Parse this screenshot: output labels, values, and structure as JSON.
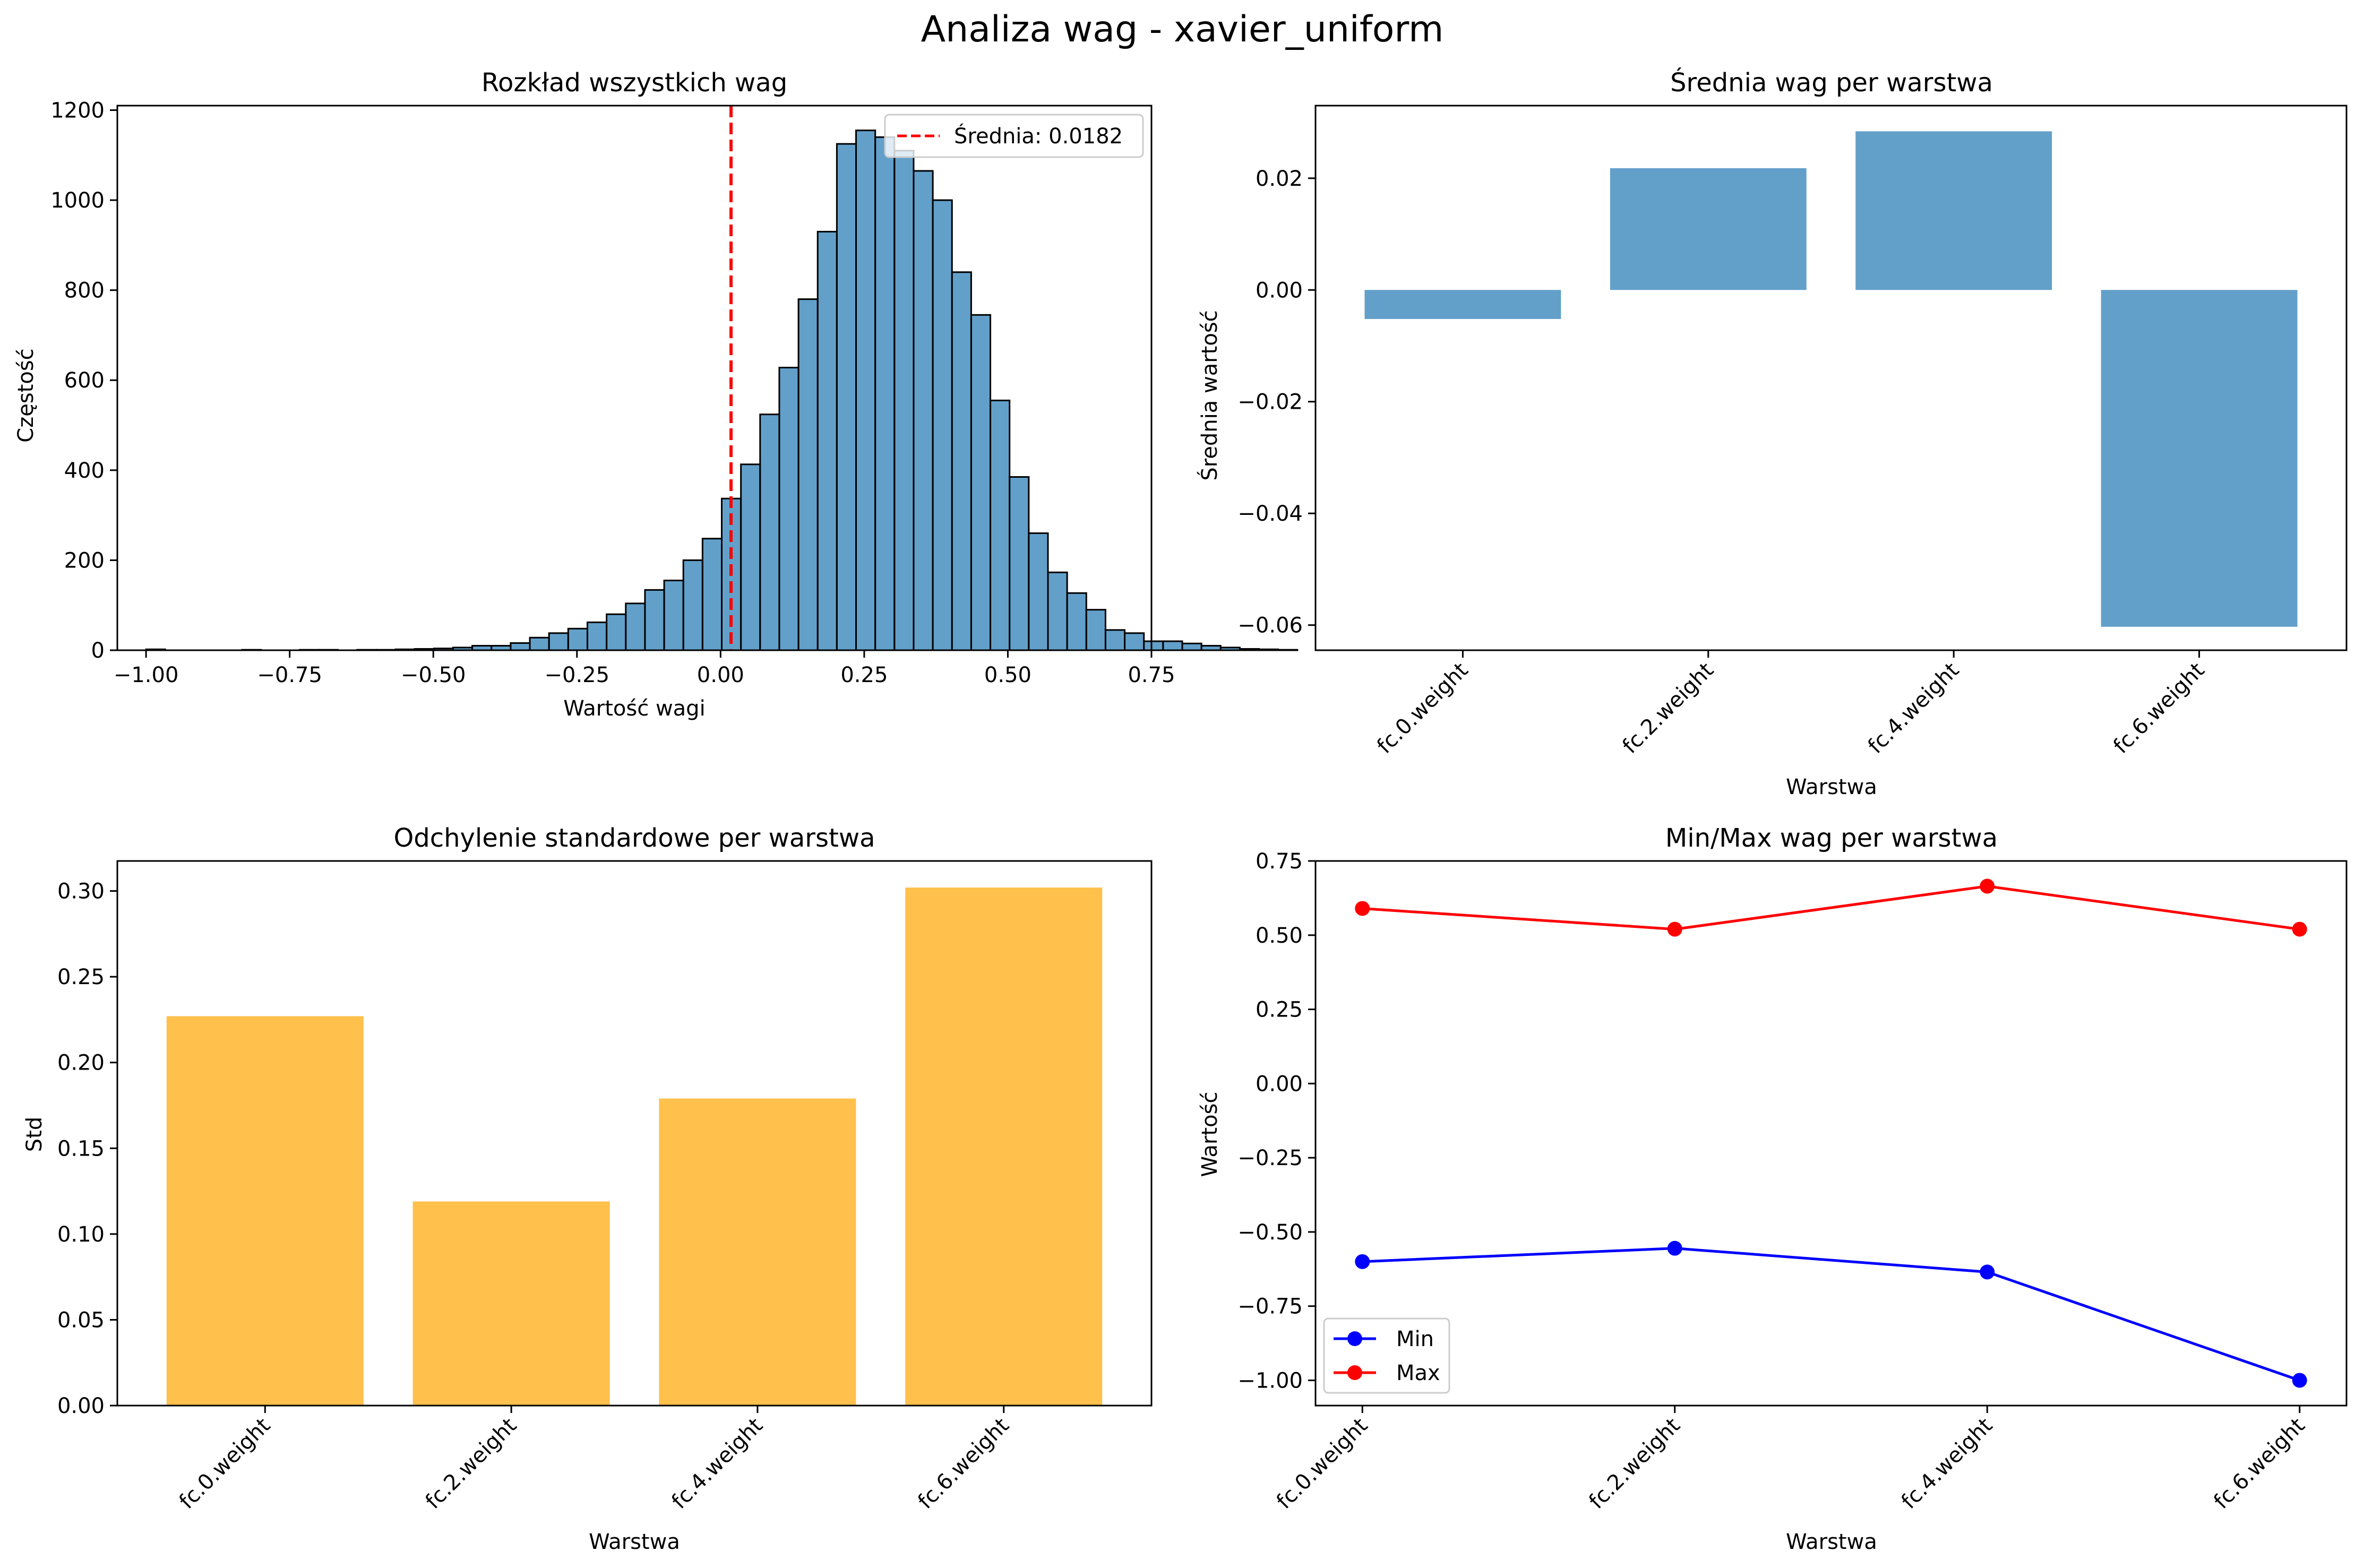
{
  "suptitle": "Analiza wag - xavier_uniform",
  "charts": {
    "hist": {
      "title": "Rozkład wszystkich wag",
      "xlabel": "Wartość wagi",
      "ylabel": "Częstość",
      "legend_label": "Średnia: 0.0182",
      "xticks": [
        "−1.00",
        "−0.75",
        "−0.50",
        "−0.25",
        "0.00",
        "0.25",
        "0.50",
        "0.75"
      ],
      "yticks": [
        "0",
        "200",
        "400",
        "600",
        "800",
        "1000",
        "1200"
      ]
    },
    "mean": {
      "title": "Średnia wag per warstwa",
      "xlabel": "Warstwa",
      "ylabel": "Średnia wartość",
      "yticks": [
        "−0.06",
        "−0.04",
        "−0.02",
        "0.00",
        "0.02"
      ]
    },
    "std": {
      "title": "Odchylenie standardowe per warstwa",
      "xlabel": "Warstwa",
      "ylabel": "Std",
      "yticks": [
        "0.00",
        "0.05",
        "0.10",
        "0.15",
        "0.20",
        "0.25",
        "0.30"
      ]
    },
    "minmax": {
      "title": "Min/Max wag per warstwa",
      "xlabel": "Warstwa",
      "ylabel": "Wartość",
      "yticks": [
        "−1.00",
        "−0.75",
        "−0.50",
        "−0.25",
        "0.00",
        "0.25",
        "0.50",
        "0.75"
      ]
    }
  },
  "chart_data": [
    {
      "type": "bar",
      "subtype": "histogram",
      "title": "Rozkład wszystkich wag",
      "xlabel": "Wartość wagi",
      "ylabel": "Częstość",
      "xlim": [
        -1.05,
        0.75
      ],
      "ylim": [
        0,
        1210
      ],
      "bin_start": -1.0,
      "bin_width": 0.0334,
      "counts": [
        2,
        0,
        0,
        0,
        0,
        1,
        0,
        0,
        1,
        1,
        0,
        1,
        1,
        2,
        3,
        4,
        6,
        10,
        10,
        16,
        28,
        38,
        48,
        62,
        80,
        104,
        134,
        155,
        200,
        248,
        337,
        413,
        524,
        628,
        780,
        930,
        1125,
        1155,
        1140,
        1110,
        1065,
        1000,
        840,
        745,
        555,
        385,
        260,
        173,
        127,
        90,
        45,
        38,
        20,
        20,
        15,
        10,
        6,
        3,
        2,
        1
      ],
      "mean_line": 0.0182,
      "mean_label": "Średnia: 0.0182",
      "bar_color": "#1f77b4",
      "mean_line_color": "#ff0000",
      "grid": false,
      "legend": "top-right"
    },
    {
      "type": "bar",
      "title": "Średnia wag per warstwa",
      "xlabel": "Warstwa",
      "ylabel": "Średnia wartość",
      "categories": [
        "fc.0.weight",
        "fc.2.weight",
        "fc.4.weight",
        "fc.6.weight"
      ],
      "values": [
        -0.0052,
        0.0218,
        0.0284,
        -0.0603
      ],
      "ylim": [
        -0.0645,
        0.033
      ],
      "color": "#1f77b4",
      "grid": false
    },
    {
      "type": "bar",
      "title": "Odchylenie standardowe per warstwa",
      "xlabel": "Warstwa",
      "ylabel": "Std",
      "categories": [
        "fc.0.weight",
        "fc.2.weight",
        "fc.4.weight",
        "fc.6.weight"
      ],
      "values": [
        0.227,
        0.119,
        0.179,
        0.302
      ],
      "ylim": [
        0,
        0.3175
      ],
      "color": "#ffa500",
      "grid": false
    },
    {
      "type": "line",
      "title": "Min/Max wag per warstwa",
      "xlabel": "Warstwa",
      "ylabel": "Wartość",
      "categories": [
        "fc.0.weight",
        "fc.2.weight",
        "fc.4.weight",
        "fc.6.weight"
      ],
      "series": [
        {
          "name": "Min",
          "values": [
            -0.6,
            -0.555,
            -0.635,
            -1.0
          ],
          "color": "#0000ff"
        },
        {
          "name": "Max",
          "values": [
            0.59,
            0.52,
            0.665,
            0.52
          ],
          "color": "#ff0000"
        }
      ],
      "ylim": [
        -1.085,
        0.75
      ],
      "grid": false,
      "legend": "bottom-left"
    }
  ]
}
